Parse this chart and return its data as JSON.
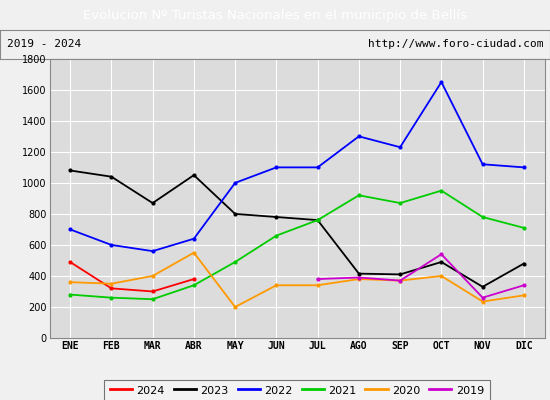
{
  "title": "Evolucion Nº Turistas Nacionales en el municipio de Bellís",
  "subtitle_left": "2019 - 2024",
  "subtitle_right": "http://www.foro-ciudad.com",
  "months": [
    "ENE",
    "FEB",
    "MAR",
    "ABR",
    "MAY",
    "JUN",
    "JUL",
    "AGO",
    "SEP",
    "OCT",
    "NOV",
    "DIC"
  ],
  "ylim": [
    0,
    1800
  ],
  "yticks": [
    0,
    200,
    400,
    600,
    800,
    1000,
    1200,
    1400,
    1600,
    1800
  ],
  "series": {
    "2024": {
      "values": [
        490,
        320,
        300,
        380,
        null,
        null,
        null,
        null,
        null,
        null,
        null,
        null
      ],
      "color": "#ff0000"
    },
    "2023": {
      "values": [
        1080,
        1040,
        870,
        1050,
        800,
        780,
        760,
        415,
        410,
        490,
        330,
        480
      ],
      "color": "#000000"
    },
    "2022": {
      "values": [
        700,
        600,
        560,
        640,
        1000,
        1100,
        1100,
        1300,
        1230,
        1650,
        1120,
        1100
      ],
      "color": "#0000ff"
    },
    "2021": {
      "values": [
        280,
        260,
        250,
        340,
        490,
        660,
        760,
        920,
        870,
        950,
        780,
        710
      ],
      "color": "#00cc00"
    },
    "2020": {
      "values": [
        360,
        350,
        400,
        550,
        200,
        340,
        340,
        380,
        370,
        400,
        235,
        275
      ],
      "color": "#ff9900"
    },
    "2019": {
      "values": [
        null,
        null,
        null,
        null,
        null,
        null,
        380,
        390,
        370,
        540,
        260,
        340
      ],
      "color": "#cc00cc"
    }
  },
  "title_bg_color": "#4c72b0",
  "title_font_color": "#ffffff",
  "plot_bg_color": "#dcdcdc",
  "grid_color": "#ffffff",
  "outer_bg_color": "#f0f0f0",
  "border_color": "#888888",
  "linewidth": 1.3,
  "year_order": [
    "2024",
    "2023",
    "2022",
    "2021",
    "2020",
    "2019"
  ]
}
